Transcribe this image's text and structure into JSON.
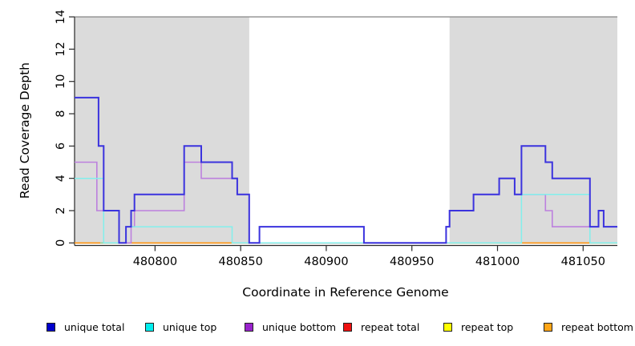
{
  "figure_title": "",
  "chart_data": {
    "type": "line",
    "subtype": "step-coverage",
    "xlabel": "Coordinate in Reference Genome",
    "ylabel": "Read Coverage Depth",
    "x_range": [
      480753,
      481070
    ],
    "y_range": [
      0,
      14
    ],
    "x_ticks": [
      480800,
      480850,
      480900,
      480950,
      481000,
      481050
    ],
    "y_ticks": [
      0,
      2,
      4,
      6,
      8,
      10,
      12,
      14
    ],
    "grid": false,
    "legend_position": "bottom",
    "top_boundary_value": 14,
    "shaded_regions": [
      {
        "from": 480753,
        "to": 480855
      },
      {
        "from": 480972,
        "to": 481070
      }
    ],
    "series": [
      {
        "name": "unique total",
        "color": "#3b33de",
        "width": 2,
        "steps": [
          [
            480753,
            9
          ],
          [
            480767,
            6
          ],
          [
            480770,
            2
          ],
          [
            480779,
            0
          ],
          [
            480783,
            1
          ],
          [
            480786,
            2
          ],
          [
            480788,
            3
          ],
          [
            480817,
            6
          ],
          [
            480827,
            5
          ],
          [
            480845,
            4
          ],
          [
            480848,
            3
          ],
          [
            480855,
            0
          ],
          [
            480861,
            1
          ],
          [
            480922,
            0
          ],
          [
            480970,
            1
          ],
          [
            480972,
            2
          ],
          [
            480986,
            3
          ],
          [
            481001,
            4
          ],
          [
            481010,
            3
          ],
          [
            481014,
            6
          ],
          [
            481028,
            5
          ],
          [
            481032,
            4
          ],
          [
            481054,
            1
          ],
          [
            481059,
            2
          ],
          [
            481062,
            1
          ]
        ]
      },
      {
        "name": "unique top",
        "color": "#82efec",
        "width": 1.5,
        "steps": [
          [
            480753,
            4
          ],
          [
            480770,
            0
          ],
          [
            480783,
            1
          ],
          [
            480845,
            0
          ],
          [
            481014,
            3
          ],
          [
            481054,
            0
          ]
        ]
      },
      {
        "name": "unique bottom",
        "color": "#bc80de",
        "width": 1.6,
        "steps": [
          [
            480753,
            5
          ],
          [
            480766,
            2
          ],
          [
            480779,
            0
          ],
          [
            480786,
            1
          ],
          [
            480788,
            2
          ],
          [
            480817,
            5
          ],
          [
            480827,
            4
          ],
          [
            480848,
            3
          ],
          [
            480855,
            0
          ],
          [
            480970,
            1
          ],
          [
            480972,
            2
          ],
          [
            480986,
            3
          ],
          [
            481001,
            4
          ],
          [
            481010,
            3
          ],
          [
            481028,
            2
          ],
          [
            481032,
            1
          ],
          [
            481059,
            2
          ],
          [
            481062,
            1
          ]
        ]
      },
      {
        "name": "repeat total",
        "color": "#dd2222",
        "width": 1.4,
        "steps": [
          [
            480753,
            0
          ]
        ]
      },
      {
        "name": "repeat top",
        "color": "#f0f040",
        "width": 1.4,
        "steps": [
          [
            480753,
            0
          ]
        ]
      },
      {
        "name": "repeat bottom",
        "color": "#ff9714",
        "width": 1.6,
        "steps": [
          [
            480753,
            0
          ]
        ]
      }
    ],
    "baseline_green_segments": [
      {
        "from": 480768,
        "to": 480779
      },
      {
        "from": 480855,
        "to": 480970
      },
      {
        "from": 480972,
        "to": 481014
      },
      {
        "from": 481054,
        "to": 481070
      }
    ],
    "baseline_green_color": "#95d59d"
  },
  "legend": {
    "items": [
      {
        "label": "unique total",
        "color": "#0000cc"
      },
      {
        "label": "unique top",
        "color": "#00eeee"
      },
      {
        "label": "unique bottom",
        "color": "#9922cc"
      },
      {
        "label": "repeat total",
        "color": "#ee1111"
      },
      {
        "label": "repeat top",
        "color": "#ffff00"
      },
      {
        "label": "repeat bottom",
        "color": "#ffa517"
      }
    ]
  },
  "style": {
    "band_color": "#dbdbdb",
    "axis_color": "#2a2a2a",
    "top_line_color": "#8e8e8e",
    "tick_label_color": "#000000"
  }
}
